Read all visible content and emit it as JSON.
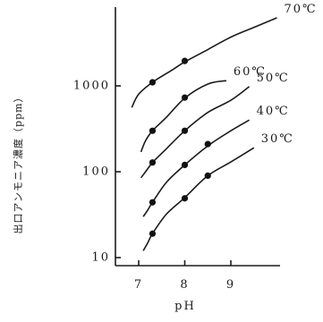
{
  "chart_data": {
    "type": "line",
    "xlabel": "pH",
    "ylabel": "出口アンモニア濃度（ppm）",
    "x_ticks": [
      "7",
      "8",
      "9"
    ],
    "y_ticks": [
      "10",
      "100",
      "1000"
    ],
    "xlim": [
      6.5,
      10.2
    ],
    "ylim": [
      10,
      10000
    ],
    "log_y": true,
    "grid": false,
    "series": [
      {
        "name": "70℃",
        "curve_x": [
          6.85,
          7.0,
          7.3,
          7.7,
          8.0,
          8.5,
          9.0,
          9.5,
          10.0
        ],
        "curve_y": [
          560,
          800,
          1100,
          1500,
          1900,
          2650,
          3700,
          4800,
          6200
        ],
        "points_x": [
          7.3,
          8.0
        ],
        "points_y": [
          1100,
          1950
        ]
      },
      {
        "name": "60℃",
        "curve_x": [
          7.05,
          7.15,
          7.3,
          7.6,
          8.0,
          8.5,
          8.9
        ],
        "curve_y": [
          170,
          230,
          300,
          430,
          720,
          1050,
          1150
        ],
        "points_x": [
          7.3,
          8.0
        ],
        "points_y": [
          300,
          730
        ]
      },
      {
        "name": "50℃",
        "curve_x": [
          7.05,
          7.15,
          7.3,
          7.6,
          8.0,
          8.5,
          9.0,
          9.4
        ],
        "curve_y": [
          85,
          100,
          128,
          185,
          300,
          490,
          680,
          980
        ],
        "points_x": [
          7.3,
          8.0
        ],
        "points_y": [
          128,
          300
        ]
      },
      {
        "name": "40℃",
        "curve_x": [
          7.1,
          7.2,
          7.3,
          7.6,
          8.0,
          8.5,
          9.0,
          9.4
        ],
        "curve_y": [
          30,
          36,
          44,
          75,
          120,
          200,
          300,
          400
        ],
        "points_x": [
          7.3,
          8.0,
          8.5
        ],
        "points_y": [
          44,
          120,
          210
        ]
      },
      {
        "name": "30℃",
        "curve_x": [
          7.1,
          7.2,
          7.3,
          7.6,
          8.0,
          8.5,
          9.0,
          9.5
        ],
        "curve_y": [
          12,
          15,
          19,
          32,
          50,
          90,
          130,
          190
        ],
        "points_x": [
          7.3,
          8.0,
          8.5
        ],
        "points_y": [
          19,
          49,
          90
        ]
      }
    ]
  }
}
